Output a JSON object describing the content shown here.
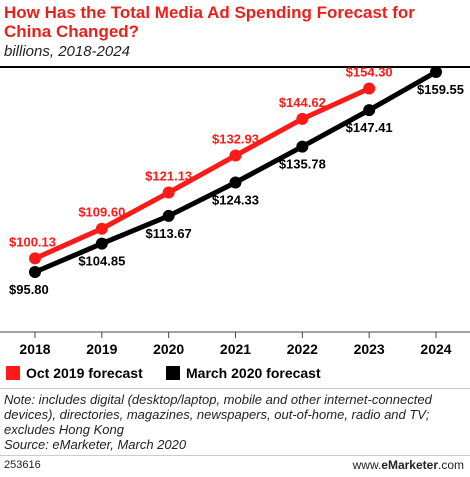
{
  "title": "How Has the Total Media Ad Spending Forecast for China Changed?",
  "subtitle": "billions, 2018-2024",
  "chart_data": {
    "type": "line",
    "x": [
      "2018",
      "2019",
      "2020",
      "2021",
      "2022",
      "2023",
      "2024"
    ],
    "series": [
      {
        "name": "Oct 2019 forecast",
        "color": "#ff1a1a",
        "values": [
          100.13,
          109.6,
          121.13,
          132.93,
          144.62,
          154.3,
          null
        ],
        "labels": [
          "$100.13",
          "$109.60",
          "$121.13",
          "$132.93",
          "$144.62",
          "$154.30",
          null
        ]
      },
      {
        "name": "March 2020 forecast",
        "color": "#000000",
        "values": [
          95.8,
          104.85,
          113.67,
          124.33,
          135.78,
          147.41,
          159.55
        ],
        "labels": [
          "$95.80",
          "$104.85",
          "$113.67",
          "$124.33",
          "$135.78",
          "$147.41",
          "$159.55"
        ]
      }
    ],
    "ylim": [
      90,
      165
    ],
    "grid": false,
    "legend": "bottom"
  },
  "notes": "Note: includes digital (desktop/laptop, mobile and other internet-connected devices), directories, magazines, newspapers, out-of-home, radio and TV; excludes Hong Kong",
  "source": "Source: eMarketer, March 2020",
  "footer_id": "253616",
  "brand": {
    "prefix": "www.",
    "name": "eMarketer",
    "suffix": ".com"
  }
}
